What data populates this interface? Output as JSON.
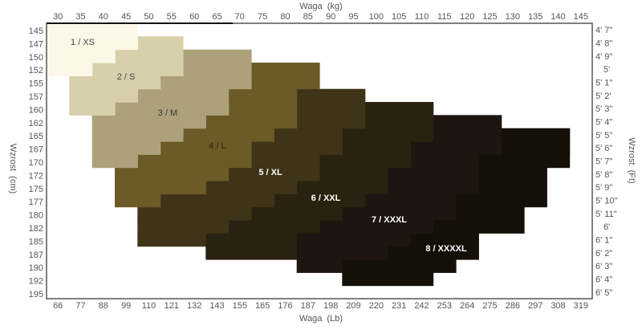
{
  "chart_data": {
    "type": "heatmap",
    "title": "",
    "top_axis_label": "Waga  (kg)",
    "bottom_axis_label": "Waga  (Lb)",
    "left_axis_label": "Wzrost  (cm)",
    "right_axis_label": "Wzrost  (Ft)",
    "kg_ticks": [
      30,
      35,
      40,
      45,
      50,
      55,
      60,
      65,
      70,
      75,
      80,
      85,
      90,
      95,
      100,
      105,
      110,
      115,
      120,
      125,
      130,
      135,
      140,
      145
    ],
    "lb_ticks": [
      66,
      77,
      88,
      99,
      110,
      121,
      132,
      143,
      155,
      165,
      176,
      187,
      198,
      209,
      220,
      231,
      242,
      253,
      264,
      275,
      286,
      297,
      308,
      319
    ],
    "cm_ticks": [
      145,
      147,
      150,
      152,
      155,
      157,
      160,
      162,
      165,
      167,
      170,
      172,
      175,
      177,
      180,
      182,
      185,
      187,
      190,
      192,
      195
    ],
    "cm_ticks_extra": [],
    "ft_ticks": [
      "4'  7\"",
      "4'  8\"",
      "4'  9\"",
      "5'",
      "5'  1\"",
      "5'  2'",
      "5'  3\"",
      "5'  4\"",
      "5'  5\"",
      "5'  6\"",
      "5'  7\"",
      "5'  8\"",
      "5'  9\"",
      "5'  10\"",
      "5'  11\"",
      "6'",
      "6'  1\"",
      "6'  2\"",
      "6'  3\"",
      "6'  4\"",
      "6'  5\""
    ],
    "sizes": [
      {
        "label": "1  /  XS",
        "color": "#fbf8e8",
        "text_color": "#444",
        "rows": [
          [
            0,
            30,
            45
          ],
          [
            1,
            30,
            45
          ],
          [
            2,
            30,
            40
          ],
          [
            3,
            30,
            35
          ]
        ]
      },
      {
        "label": "2  /  S",
        "color": "#d8d0ab",
        "text_color": "#444",
        "rows": [
          [
            1,
            50,
            55
          ],
          [
            2,
            45,
            55
          ],
          [
            3,
            40,
            55
          ],
          [
            4,
            35,
            50
          ],
          [
            5,
            35,
            45
          ],
          [
            6,
            35,
            40
          ]
        ]
      },
      {
        "label": "3  /  M",
        "color": "#aca17a",
        "text_color": "#3a3a2a",
        "rows": [
          [
            2,
            60,
            70
          ],
          [
            3,
            60,
            70
          ],
          [
            4,
            55,
            70
          ],
          [
            5,
            50,
            65
          ],
          [
            6,
            45,
            65
          ],
          [
            7,
            40,
            60
          ],
          [
            8,
            40,
            55
          ],
          [
            9,
            40,
            50
          ],
          [
            10,
            40,
            45
          ]
        ]
      },
      {
        "label": "4  /  L",
        "color": "#6c5a27",
        "text_color": "#2e2610",
        "rows": [
          [
            3,
            75,
            85
          ],
          [
            4,
            75,
            85
          ],
          [
            5,
            70,
            80
          ],
          [
            6,
            70,
            80
          ],
          [
            7,
            65,
            80
          ],
          [
            8,
            60,
            75
          ],
          [
            9,
            55,
            70
          ],
          [
            10,
            50,
            70
          ],
          [
            11,
            45,
            65
          ],
          [
            12,
            45,
            60
          ],
          [
            13,
            45,
            50
          ]
        ]
      },
      {
        "label": "5  /  XL",
        "color": "#3f3318",
        "text_color": "#ffffff",
        "rows": [
          [
            5,
            85,
            95
          ],
          [
            6,
            85,
            95
          ],
          [
            7,
            85,
            95
          ],
          [
            8,
            80,
            90
          ],
          [
            9,
            75,
            90
          ],
          [
            10,
            75,
            85
          ],
          [
            11,
            70,
            85
          ],
          [
            12,
            65,
            80
          ],
          [
            13,
            55,
            75
          ],
          [
            14,
            50,
            70
          ],
          [
            15,
            50,
            65
          ],
          [
            16,
            50,
            60
          ]
        ]
      },
      {
        "label": "6  /  XXL",
        "color": "#2a2210",
        "text_color": "#ffffff",
        "rows": [
          [
            6,
            100,
            110
          ],
          [
            7,
            100,
            110
          ],
          [
            8,
            95,
            110
          ],
          [
            9,
            95,
            105
          ],
          [
            10,
            90,
            105
          ],
          [
            11,
            90,
            100
          ],
          [
            12,
            85,
            100
          ],
          [
            13,
            80,
            95
          ],
          [
            14,
            75,
            90
          ],
          [
            15,
            70,
            85
          ],
          [
            16,
            65,
            80
          ],
          [
            17,
            65,
            80
          ]
        ]
      },
      {
        "label": "7  /  XXXL",
        "color": "#1e1410",
        "text_color": "#ffffff",
        "rows": [
          [
            7,
            115,
            125
          ],
          [
            8,
            115,
            125
          ],
          [
            9,
            110,
            125
          ],
          [
            10,
            110,
            120
          ],
          [
            11,
            105,
            120
          ],
          [
            12,
            105,
            120
          ],
          [
            13,
            100,
            115
          ],
          [
            14,
            95,
            115
          ],
          [
            15,
            90,
            110
          ],
          [
            16,
            85,
            105
          ],
          [
            17,
            85,
            100
          ],
          [
            18,
            85,
            90
          ]
        ]
      },
      {
        "label": "8  /  XXXXL",
        "color": "#141008",
        "text_color": "#ffffff",
        "rows": [
          [
            8,
            130,
            140
          ],
          [
            9,
            130,
            140
          ],
          [
            10,
            125,
            140
          ],
          [
            11,
            125,
            135
          ],
          [
            12,
            125,
            135
          ],
          [
            13,
            120,
            135
          ],
          [
            14,
            120,
            130
          ],
          [
            15,
            115,
            130
          ],
          [
            16,
            110,
            120
          ],
          [
            17,
            105,
            120
          ],
          [
            18,
            95,
            115
          ],
          [
            19,
            95,
            110
          ]
        ]
      }
    ],
    "row_key": "rows are [ft_ticks index, kg from, kg to]"
  }
}
